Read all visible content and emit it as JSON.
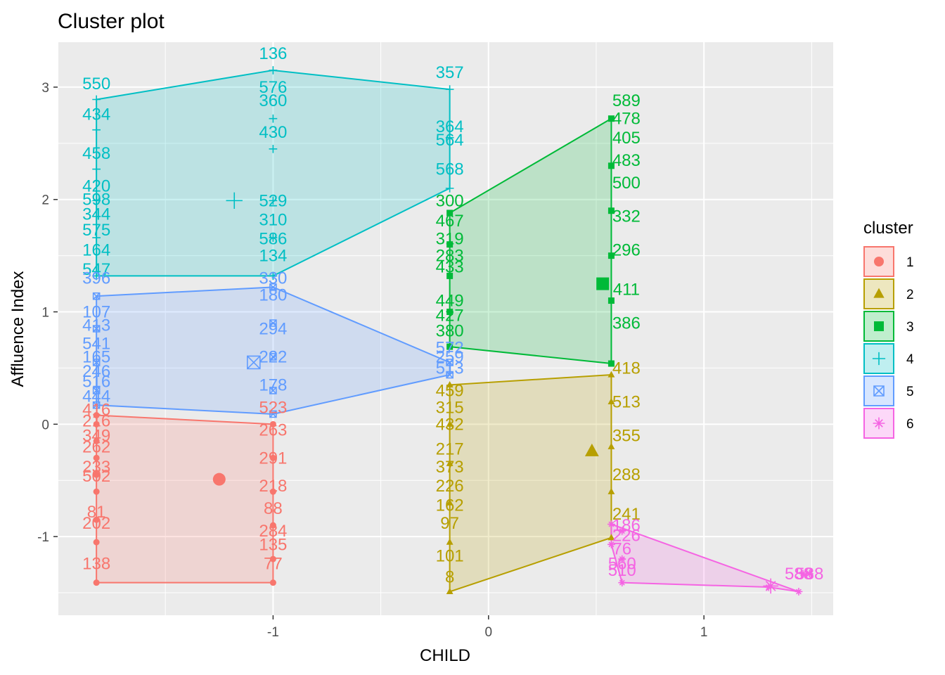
{
  "chart_data": {
    "type": "scatter",
    "title": "Cluster plot",
    "xlabel": "CHILD",
    "ylabel": "Affluence Index",
    "xlim": [
      -2.0,
      1.6
    ],
    "ylim": [
      -1.7,
      3.4
    ],
    "x_ticks": [
      {
        "value": -1,
        "label": "-1"
      },
      {
        "value": 0,
        "label": "0"
      },
      {
        "value": 1,
        "label": "1"
      }
    ],
    "y_ticks": [
      {
        "value": -1,
        "label": "-1"
      },
      {
        "value": 0,
        "label": "0"
      },
      {
        "value": 1,
        "label": "1"
      },
      {
        "value": 2,
        "label": "2"
      },
      {
        "value": 3,
        "label": "3"
      }
    ],
    "grid": true,
    "legend": {
      "title": "cluster",
      "position": "right"
    },
    "clusters": [
      {
        "name": "1",
        "color": "#F8766D",
        "shape": "circle",
        "hull": [
          [
            -1.82,
            0.08
          ],
          [
            -1.82,
            -1.41
          ],
          [
            -1.0,
            -1.41
          ],
          [
            -1.0,
            0.0
          ]
        ],
        "center": [
          -1.25,
          -0.49
        ],
        "points": [
          [
            -1.82,
            -1.41
          ],
          [
            -1.82,
            -1.05
          ],
          [
            -1.82,
            -0.85
          ],
          [
            -1.82,
            -0.6
          ],
          [
            -1.82,
            -0.45
          ],
          [
            -1.82,
            -0.3
          ],
          [
            -1.82,
            -0.15
          ],
          [
            -1.82,
            0.0
          ],
          [
            -1.82,
            0.08
          ],
          [
            -1.0,
            -1.41
          ],
          [
            -1.0,
            -1.2
          ],
          [
            -1.0,
            -0.9
          ],
          [
            -1.0,
            -0.6
          ],
          [
            -1.0,
            -0.3
          ],
          [
            -1.0,
            0.0
          ]
        ],
        "labels": [
          {
            "text": "138",
            "x": -1.82,
            "y": -1.24
          },
          {
            "text": "202",
            "x": -1.82,
            "y": -0.88
          },
          {
            "text": "81",
            "x": -1.82,
            "y": -0.78
          },
          {
            "text": "502",
            "x": -1.82,
            "y": -0.46
          },
          {
            "text": "233",
            "x": -1.82,
            "y": -0.38
          },
          {
            "text": "262",
            "x": -1.82,
            "y": -0.2
          },
          {
            "text": "349",
            "x": -1.82,
            "y": -0.1
          },
          {
            "text": "216",
            "x": -1.82,
            "y": 0.03
          },
          {
            "text": "416",
            "x": -1.82,
            "y": 0.13
          },
          {
            "text": "77",
            "x": -1.0,
            "y": -1.24
          },
          {
            "text": "135",
            "x": -1.0,
            "y": -1.07
          },
          {
            "text": "284",
            "x": -1.0,
            "y": -0.95
          },
          {
            "text": "88",
            "x": -1.0,
            "y": -0.75
          },
          {
            "text": "218",
            "x": -1.0,
            "y": -0.55
          },
          {
            "text": "291",
            "x": -1.0,
            "y": -0.3
          },
          {
            "text": "263",
            "x": -1.0,
            "y": -0.05
          },
          {
            "text": "523",
            "x": -1.0,
            "y": 0.15
          }
        ]
      },
      {
        "name": "2",
        "color": "#B79F00",
        "shape": "triangle",
        "hull": [
          [
            -0.18,
            0.35
          ],
          [
            -0.18,
            -1.49
          ],
          [
            0.57,
            -1.01
          ],
          [
            0.57,
            0.44
          ]
        ],
        "center": [
          0.48,
          -0.24
        ],
        "points": [
          [
            -0.18,
            -1.49
          ],
          [
            -0.18,
            -1.05
          ],
          [
            -0.18,
            -0.7
          ],
          [
            -0.18,
            -0.35
          ],
          [
            -0.18,
            0.0
          ],
          [
            -0.18,
            0.35
          ],
          [
            0.57,
            -1.01
          ],
          [
            0.57,
            -0.6
          ],
          [
            0.57,
            -0.2
          ],
          [
            0.57,
            0.2
          ],
          [
            0.57,
            0.44
          ]
        ],
        "labels": [
          {
            "text": "8",
            "x": -0.18,
            "y": -1.36
          },
          {
            "text": "101",
            "x": -0.18,
            "y": -1.17
          },
          {
            "text": "97",
            "x": -0.18,
            "y": -0.88
          },
          {
            "text": "162",
            "x": -0.18,
            "y": -0.72
          },
          {
            "text": "226",
            "x": -0.18,
            "y": -0.55
          },
          {
            "text": "373",
            "x": -0.18,
            "y": -0.38
          },
          {
            "text": "217",
            "x": -0.18,
            "y": -0.22
          },
          {
            "text": "432",
            "x": -0.18,
            "y": 0.0
          },
          {
            "text": "315",
            "x": -0.18,
            "y": 0.15
          },
          {
            "text": "459",
            "x": -0.18,
            "y": 0.3
          },
          {
            "text": "241",
            "x": 0.64,
            "y": -0.8
          },
          {
            "text": "288",
            "x": 0.64,
            "y": -0.45
          },
          {
            "text": "355",
            "x": 0.64,
            "y": -0.1
          },
          {
            "text": "513",
            "x": 0.64,
            "y": 0.2
          },
          {
            "text": "418",
            "x": 0.64,
            "y": 0.5
          }
        ]
      },
      {
        "name": "3",
        "color": "#00BA38",
        "shape": "square",
        "hull": [
          [
            -0.18,
            1.88
          ],
          [
            0.57,
            2.72
          ],
          [
            0.57,
            0.54
          ],
          [
            -0.18,
            0.69
          ]
        ],
        "center": [
          0.53,
          1.25
        ],
        "points": [
          [
            -0.18,
            0.69
          ],
          [
            -0.18,
            1.0
          ],
          [
            -0.18,
            1.32
          ],
          [
            -0.18,
            1.6
          ],
          [
            -0.18,
            1.88
          ],
          [
            0.57,
            2.72
          ],
          [
            0.57,
            2.3
          ],
          [
            0.57,
            1.9
          ],
          [
            0.57,
            1.5
          ],
          [
            0.57,
            1.1
          ],
          [
            0.57,
            0.54
          ]
        ],
        "labels": [
          {
            "text": "589",
            "x": 0.64,
            "y": 2.88
          },
          {
            "text": "478",
            "x": 0.64,
            "y": 2.72
          },
          {
            "text": "405",
            "x": 0.64,
            "y": 2.55
          },
          {
            "text": "483",
            "x": 0.64,
            "y": 2.35
          },
          {
            "text": "500",
            "x": 0.64,
            "y": 2.15
          },
          {
            "text": "332",
            "x": 0.64,
            "y": 1.85
          },
          {
            "text": "296",
            "x": 0.64,
            "y": 1.55
          },
          {
            "text": "411",
            "x": 0.64,
            "y": 1.2
          },
          {
            "text": "386",
            "x": 0.64,
            "y": 0.9
          },
          {
            "text": "300",
            "x": -0.18,
            "y": 1.99
          },
          {
            "text": "467",
            "x": -0.18,
            "y": 1.81
          },
          {
            "text": "319",
            "x": -0.18,
            "y": 1.65
          },
          {
            "text": "283",
            "x": -0.18,
            "y": 1.5
          },
          {
            "text": "433",
            "x": -0.18,
            "y": 1.4
          },
          {
            "text": "449",
            "x": -0.18,
            "y": 1.1
          },
          {
            "text": "427",
            "x": -0.18,
            "y": 0.97
          },
          {
            "text": "380",
            "x": -0.18,
            "y": 0.83
          }
        ]
      },
      {
        "name": "4",
        "color": "#00BFC4",
        "shape": "plus",
        "hull": [
          [
            -1.82,
            2.89
          ],
          [
            -1.0,
            3.15
          ],
          [
            -0.18,
            2.98
          ],
          [
            -0.18,
            2.1
          ],
          [
            -1.0,
            1.32
          ],
          [
            -1.82,
            1.32
          ]
        ],
        "center": [
          -1.18,
          1.99
        ],
        "points": [
          [
            -1.82,
            2.89
          ],
          [
            -1.82,
            2.62
          ],
          [
            -1.82,
            2.27
          ],
          [
            -1.82,
            1.99
          ],
          [
            -1.82,
            1.66
          ],
          [
            -1.82,
            1.32
          ],
          [
            -1.0,
            3.15
          ],
          [
            -1.0,
            2.72
          ],
          [
            -1.0,
            2.45
          ],
          [
            -1.0,
            1.99
          ],
          [
            -1.0,
            1.66
          ],
          [
            -1.0,
            1.32
          ],
          [
            -0.18,
            2.98
          ],
          [
            -0.18,
            2.55
          ],
          [
            -0.18,
            2.1
          ]
        ],
        "labels": [
          {
            "text": "550",
            "x": -1.82,
            "y": 3.03
          },
          {
            "text": "434",
            "x": -1.82,
            "y": 2.76
          },
          {
            "text": "458",
            "x": -1.82,
            "y": 2.41
          },
          {
            "text": "420",
            "x": -1.82,
            "y": 2.12
          },
          {
            "text": "598",
            "x": -1.82,
            "y": 2.0
          },
          {
            "text": "344",
            "x": -1.82,
            "y": 1.87
          },
          {
            "text": "575",
            "x": -1.82,
            "y": 1.73
          },
          {
            "text": "164",
            "x": -1.82,
            "y": 1.55
          },
          {
            "text": "547",
            "x": -1.82,
            "y": 1.38
          },
          {
            "text": "136",
            "x": -1.0,
            "y": 3.3
          },
          {
            "text": "576",
            "x": -1.0,
            "y": 3.0
          },
          {
            "text": "360",
            "x": -1.0,
            "y": 2.88
          },
          {
            "text": "430",
            "x": -1.0,
            "y": 2.6
          },
          {
            "text": "529",
            "x": -1.0,
            "y": 1.99
          },
          {
            "text": "310",
            "x": -1.0,
            "y": 1.82
          },
          {
            "text": "586",
            "x": -1.0,
            "y": 1.65
          },
          {
            "text": "134",
            "x": -1.0,
            "y": 1.5
          },
          {
            "text": "357",
            "x": -0.18,
            "y": 3.13
          },
          {
            "text": "364",
            "x": -0.18,
            "y": 2.65
          },
          {
            "text": "564",
            "x": -0.18,
            "y": 2.53
          },
          {
            "text": "568",
            "x": -0.18,
            "y": 2.27
          }
        ]
      },
      {
        "name": "5",
        "color": "#619CFF",
        "shape": "square-cross",
        "hull": [
          [
            -1.82,
            1.14
          ],
          [
            -1.0,
            1.22
          ],
          [
            -0.18,
            0.55
          ],
          [
            -0.18,
            0.44
          ],
          [
            -1.0,
            0.09
          ],
          [
            -1.82,
            0.17
          ]
        ],
        "center": [
          -1.09,
          0.55
        ],
        "points": [
          [
            -1.82,
            1.14
          ],
          [
            -1.82,
            0.85
          ],
          [
            -1.82,
            0.55
          ],
          [
            -1.82,
            0.3
          ],
          [
            -1.82,
            0.17
          ],
          [
            -1.0,
            1.22
          ],
          [
            -1.0,
            0.9
          ],
          [
            -1.0,
            0.6
          ],
          [
            -1.0,
            0.3
          ],
          [
            -1.0,
            0.09
          ],
          [
            -0.18,
            0.55
          ],
          [
            -0.18,
            0.44
          ]
        ],
        "labels": [
          {
            "text": "396",
            "x": -1.82,
            "y": 1.3
          },
          {
            "text": "107",
            "x": -1.82,
            "y": 1.0
          },
          {
            "text": "413",
            "x": -1.82,
            "y": 0.88
          },
          {
            "text": "541",
            "x": -1.82,
            "y": 0.72
          },
          {
            "text": "165",
            "x": -1.82,
            "y": 0.6
          },
          {
            "text": "246",
            "x": -1.82,
            "y": 0.47
          },
          {
            "text": "516",
            "x": -1.82,
            "y": 0.38
          },
          {
            "text": "444",
            "x": -1.82,
            "y": 0.25
          },
          {
            "text": "330",
            "x": -1.0,
            "y": 1.3
          },
          {
            "text": "180",
            "x": -1.0,
            "y": 1.15
          },
          {
            "text": "294",
            "x": -1.0,
            "y": 0.85
          },
          {
            "text": "222",
            "x": -1.0,
            "y": 0.6
          },
          {
            "text": "178",
            "x": -1.0,
            "y": 0.35
          },
          {
            "text": "572",
            "x": -0.18,
            "y": 0.68
          },
          {
            "text": "259",
            "x": -0.18,
            "y": 0.6
          },
          {
            "text": "513",
            "x": -0.18,
            "y": 0.5
          }
        ]
      },
      {
        "name": "6",
        "color": "#F564E3",
        "shape": "star",
        "hull": [
          [
            0.57,
            -0.89
          ],
          [
            0.57,
            -1.07
          ],
          [
            0.62,
            -1.41
          ],
          [
            1.3,
            -1.45
          ],
          [
            1.44,
            -1.49
          ]
        ],
        "center": [
          1.31,
          -1.44
        ],
        "points": [
          [
            0.57,
            -0.89
          ],
          [
            0.62,
            -0.95
          ],
          [
            0.57,
            -1.07
          ],
          [
            0.62,
            -1.2
          ],
          [
            0.62,
            -1.41
          ],
          [
            1.3,
            -1.45
          ],
          [
            1.44,
            -1.49
          ],
          [
            1.49,
            -1.33
          ],
          [
            1.46,
            -1.33
          ]
        ],
        "labels": [
          {
            "text": "186",
            "x": 0.64,
            "y": -0.9
          },
          {
            "text": "226",
            "x": 0.64,
            "y": -0.99
          },
          {
            "text": "76",
            "x": 0.62,
            "y": -1.11
          },
          {
            "text": "560",
            "x": 0.62,
            "y": -1.24
          },
          {
            "text": "510",
            "x": 0.62,
            "y": -1.3
          },
          {
            "text": "588",
            "x": 1.49,
            "y": -1.33
          },
          {
            "text": "588",
            "x": 1.44,
            "y": -1.33
          }
        ]
      }
    ]
  }
}
